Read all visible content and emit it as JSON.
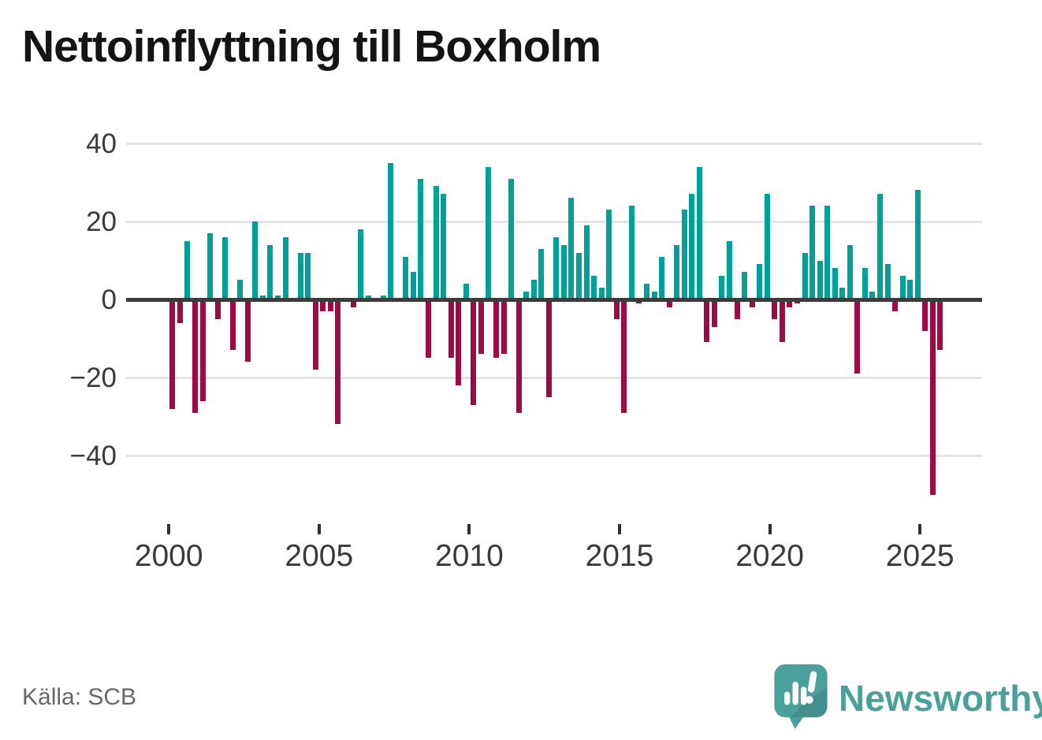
{
  "title": "Nettoinflyttning till Boxholm",
  "source": "Källa: SCB",
  "branding": {
    "wordmark": "Newsworthy",
    "color": "#4aa09b",
    "icon": "newsworthy-speech-bubble-chart-icon"
  },
  "colors": {
    "positive": "#00a09a",
    "negative": "#9c0b46",
    "axis": "#3b3b3b",
    "grid": "#e4e4e4"
  },
  "axes": {
    "y_ticks": [
      {
        "label": "40",
        "value": 40
      },
      {
        "label": "20",
        "value": 20
      },
      {
        "label": "0",
        "value": 0
      },
      {
        "label": "−20",
        "value": -20
      },
      {
        "label": "−40",
        "value": -40
      }
    ],
    "x_ticks": [
      {
        "label": "2000",
        "year": 2000
      },
      {
        "label": "2005",
        "year": 2005
      },
      {
        "label": "2010",
        "year": 2010
      },
      {
        "label": "2015",
        "year": 2015
      },
      {
        "label": "2020",
        "year": 2020
      },
      {
        "label": "2025",
        "year": 2025
      }
    ]
  },
  "chart_data": {
    "type": "bar",
    "title": "Nettoinflyttning till Boxholm",
    "frequency": "quarterly",
    "start_period": "2000Q1",
    "end_period": "2025Q3",
    "ylim": [
      -55,
      42
    ],
    "grid": true,
    "values_by_year": {
      "2000": [
        -28,
        -6,
        15,
        -29
      ],
      "2001": [
        -26,
        17,
        -5,
        16
      ],
      "2002": [
        -13,
        5,
        -16,
        20
      ],
      "2003": [
        1,
        14,
        1,
        16
      ],
      "2004": [
        0,
        12,
        12,
        -18
      ],
      "2005": [
        -3,
        -3,
        -32,
        0
      ],
      "2006": [
        -2,
        18,
        1,
        0
      ],
      "2007": [
        1,
        35,
        0,
        11
      ],
      "2008": [
        7,
        31,
        -15,
        29
      ],
      "2009": [
        27,
        -15,
        -22,
        4
      ],
      "2010": [
        -27,
        -14,
        34,
        -15
      ],
      "2011": [
        -14,
        31,
        -29,
        2
      ],
      "2012": [
        5,
        13,
        -25,
        16
      ],
      "2013": [
        14,
        26,
        12,
        19
      ],
      "2014": [
        6,
        3,
        23,
        -5
      ],
      "2015": [
        -29,
        24,
        -1,
        4
      ],
      "2016": [
        2,
        11,
        -2,
        14
      ],
      "2017": [
        23,
        27,
        34,
        -11
      ],
      "2018": [
        -7,
        6,
        15,
        -5
      ],
      "2019": [
        7,
        -2,
        9,
        27
      ],
      "2020": [
        -5,
        -11,
        -2,
        -1
      ],
      "2021": [
        12,
        24,
        10,
        24
      ],
      "2022": [
        8,
        3,
        14,
        -19
      ],
      "2023": [
        8,
        2,
        27,
        9
      ],
      "2024": [
        -3,
        6,
        5,
        28
      ],
      "2025": [
        -8,
        -50,
        -13
      ]
    }
  }
}
